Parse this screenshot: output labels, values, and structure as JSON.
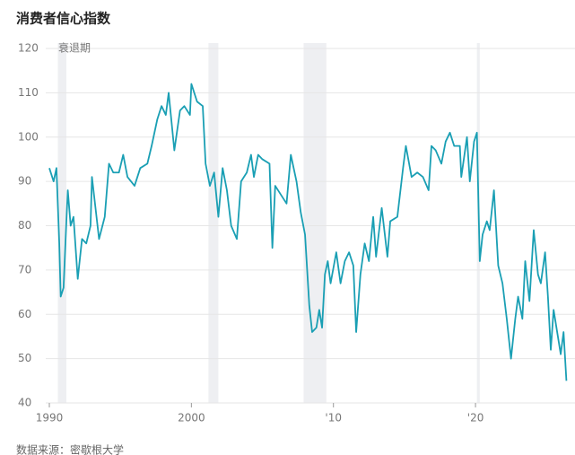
{
  "chart_data": {
    "type": "line",
    "title": "消费者信心指数",
    "annotation": "衰退期",
    "source": "数据来源：密歇根大学",
    "xlim": [
      1990,
      2026.5
    ],
    "ylim": [
      40,
      120
    ],
    "yticks": [
      40,
      50,
      60,
      70,
      80,
      90,
      100,
      110,
      120
    ],
    "xticks": [
      1990,
      2000,
      {
        "value": 2010,
        "label": "'10"
      },
      {
        "value": 2020,
        "label": "'20"
      }
    ],
    "grid": true,
    "recessions": [
      [
        1990.6,
        1991.2
      ],
      [
        2001.2,
        2001.9
      ],
      [
        2007.9,
        2009.5
      ],
      [
        2020.1,
        2020.3
      ]
    ],
    "recession_color": "#eeeff2",
    "series": [
      {
        "color": "#1a9fb4",
        "x": [
          1990.0,
          1990.3,
          1990.5,
          1990.7,
          1990.8,
          1991.0,
          1991.2,
          1991.3,
          1991.5,
          1991.7,
          1992.0,
          1992.3,
          1992.6,
          1992.9,
          1993.0,
          1993.5,
          1993.9,
          1994.2,
          1994.5,
          1994.9,
          1995.2,
          1995.5,
          1996.0,
          1996.4,
          1996.9,
          1997.2,
          1997.6,
          1997.9,
          1998.2,
          1998.4,
          1998.8,
          1999.2,
          1999.5,
          1999.9,
          2000.0,
          2000.4,
          2000.8,
          2001.0,
          2001.3,
          2001.6,
          2001.9,
          2002.2,
          2002.5,
          2002.8,
          2003.2,
          2003.5,
          2003.9,
          2004.2,
          2004.4,
          2004.7,
          2005.0,
          2005.5,
          2005.7,
          2005.9,
          2006.3,
          2006.7,
          2007.0,
          2007.4,
          2007.7,
          2008.0,
          2008.3,
          2008.5,
          2008.8,
          2009.0,
          2009.2,
          2009.4,
          2009.6,
          2009.8,
          2010.2,
          2010.5,
          2010.8,
          2011.1,
          2011.4,
          2011.6,
          2011.9,
          2012.2,
          2012.5,
          2012.8,
          2013.0,
          2013.4,
          2013.8,
          2014.0,
          2014.5,
          2014.9,
          2015.1,
          2015.5,
          2015.9,
          2016.3,
          2016.7,
          2016.9,
          2017.2,
          2017.6,
          2017.9,
          2018.2,
          2018.5,
          2018.9,
          2019.0,
          2019.4,
          2019.6,
          2019.9,
          2020.1,
          2020.3,
          2020.5,
          2020.8,
          2021.0,
          2021.3,
          2021.6,
          2021.9,
          2022.2,
          2022.5,
          2022.8,
          2023.0,
          2023.3,
          2023.5,
          2023.8,
          2024.1,
          2024.4,
          2024.6,
          2024.9,
          2025.1,
          2025.3,
          2025.5,
          2025.8,
          2026.0,
          2026.2,
          2026.4
        ],
        "values": [
          93,
          90,
          93,
          76,
          64,
          66,
          81,
          88,
          80,
          82,
          68,
          77,
          76,
          80,
          91,
          77,
          82,
          94,
          92,
          92,
          96,
          91,
          89,
          93,
          94,
          98,
          104,
          107,
          105,
          110,
          97,
          106,
          107,
          105,
          112,
          108,
          107,
          94,
          89,
          92,
          82,
          93,
          88,
          80,
          77,
          90,
          92,
          96,
          91,
          96,
          95,
          94,
          75,
          89,
          87,
          85,
          96,
          90,
          83,
          78,
          62,
          56,
          57,
          61,
          57,
          69,
          72,
          67,
          74,
          67,
          72,
          74,
          71,
          56,
          69,
          76,
          72,
          82,
          73,
          84,
          73,
          81,
          82,
          93,
          98,
          91,
          92,
          91,
          88,
          98,
          97,
          94,
          99,
          101,
          98,
          98,
          91,
          100,
          90,
          99,
          101,
          72,
          78,
          81,
          79,
          88,
          71,
          67,
          59,
          50,
          59,
          64,
          59,
          72,
          63,
          79,
          69,
          67,
          74,
          64,
          52,
          61,
          55,
          51,
          56,
          45
        ]
      }
    ]
  }
}
